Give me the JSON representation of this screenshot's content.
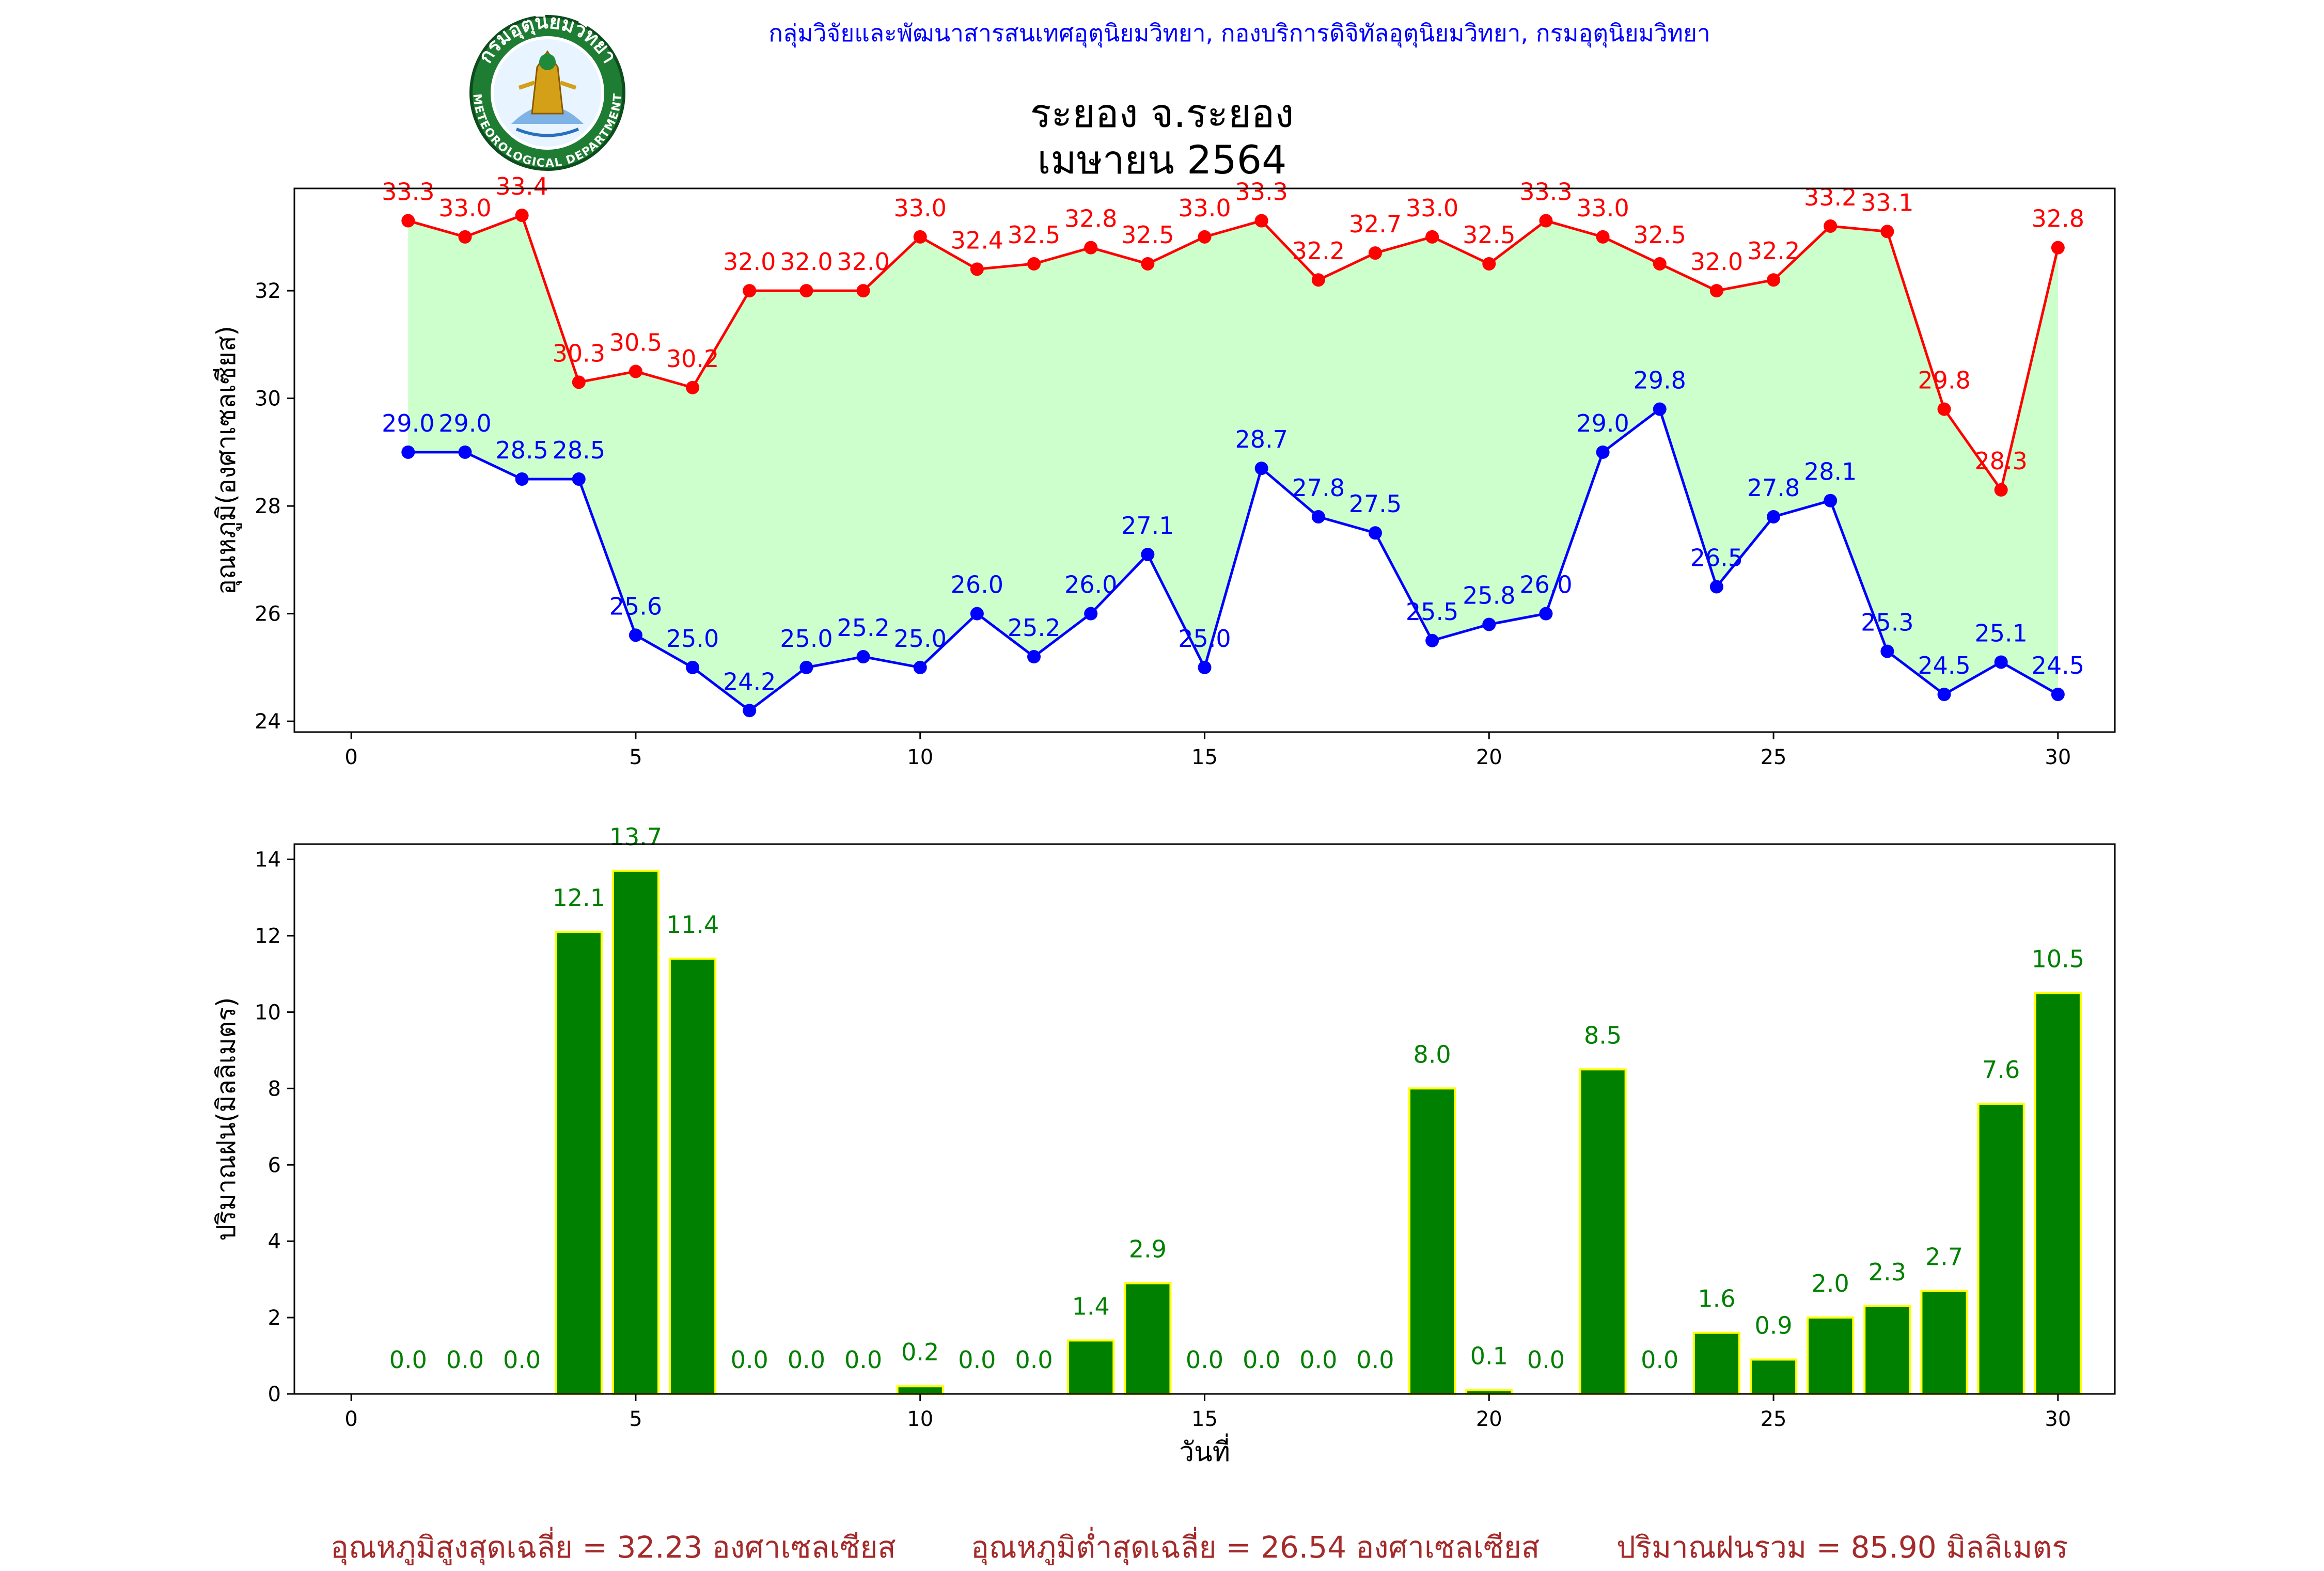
{
  "header": {
    "org": "กลุ่มวิจัยและพัฒนาสารสนเทศอุตุนิยมวิทยา, กองบริการดิจิทัลอุตุนิยมวิทยา, กรมอุตุนิยมวิทยา",
    "title_line1": "ระยอง จ.ระยอง",
    "title_line2": "เมษายน 2564"
  },
  "logo": {
    "text_top": "กรมอุตุนิยมวิทยา",
    "text_bottom": "METEOROLOGICAL DEPARTMENT",
    "colors": {
      "ring": "#1e7d32",
      "inner": "#ffffff",
      "figure": "#d4a017"
    }
  },
  "colors": {
    "max": "#ff0000",
    "min": "#0000ff",
    "fill": "#ccffcc",
    "bar": "#008000",
    "bar_edge": "#ffff00",
    "bar_label": "#008000",
    "footer": "#a52a2a"
  },
  "footer": {
    "max_avg": "อุณหภูมิสูงสุดเฉลี่ย = 32.23 องศาเซลเซียส",
    "min_avg": "อุณหภูมิต่ำสุดเฉลี่ย = 26.54 องศาเซลเซียส",
    "rain_total": "ปริมาณฝนรวม = 85.90 มิลลิเมตร"
  },
  "chart_data": [
    {
      "type": "line",
      "ylabel": "อุณหภูมิ(องศาเซลเซียส)",
      "xlabel": "",
      "xlim": [
        -1,
        31
      ],
      "ylim": [
        23.8,
        33.9
      ],
      "xticks": [
        0,
        5,
        10,
        15,
        20,
        25,
        30
      ],
      "yticks": [
        24,
        26,
        28,
        30,
        32
      ],
      "fill_between": true,
      "x": [
        1,
        2,
        3,
        4,
        5,
        6,
        7,
        8,
        9,
        10,
        11,
        12,
        13,
        14,
        15,
        16,
        17,
        18,
        19,
        20,
        21,
        22,
        23,
        24,
        25,
        26,
        27,
        28,
        29,
        30
      ],
      "series": [
        {
          "key": "max",
          "values": [
            33.3,
            33.0,
            33.4,
            30.3,
            30.5,
            30.2,
            32.0,
            32.0,
            32.0,
            33.0,
            32.4,
            32.5,
            32.8,
            32.5,
            33.0,
            33.3,
            32.2,
            32.7,
            33.0,
            32.5,
            33.3,
            33.0,
            32.5,
            32.0,
            32.2,
            33.2,
            33.1,
            29.8,
            28.3,
            32.8
          ],
          "labels": [
            "33.3",
            "33.0",
            "33.4",
            "30.3",
            "30.5",
            "30.2",
            "32.0",
            "32.0",
            "32.0",
            "33.0",
            "32.4",
            "32.5",
            "32.8",
            "32.5",
            "33.0",
            "33.3",
            "32.2",
            "32.7",
            "33.0",
            "32.5",
            "33.3",
            "33.0",
            "32.5",
            "32.0",
            "32.2",
            "33.2",
            "33.1",
            "29.8",
            "28.3",
            "32.8"
          ]
        },
        {
          "key": "min",
          "values": [
            29.0,
            29.0,
            28.5,
            28.5,
            25.6,
            25.0,
            24.2,
            25.0,
            25.2,
            25.0,
            26.0,
            25.2,
            26.0,
            27.1,
            25.0,
            28.7,
            27.8,
            27.5,
            25.5,
            25.8,
            26.0,
            29.0,
            29.8,
            26.5,
            27.8,
            28.1,
            25.3,
            24.5,
            25.1,
            24.5
          ],
          "labels": [
            "29.0",
            "29.0",
            "28.5",
            "28.5",
            "25.6",
            "25.0",
            "24.2",
            "25.0",
            "25.2",
            "25.0",
            "26.0",
            "25.2",
            "26.0",
            "27.1",
            "25.0",
            "28.7",
            "27.8",
            "27.5",
            "25.5",
            "25.8",
            "26.0",
            "29.0",
            "29.8",
            "26.5",
            "27.8",
            "28.1",
            "25.3",
            "24.5",
            "25.1",
            "24.5"
          ]
        }
      ]
    },
    {
      "type": "bar",
      "ylabel": "ปริมาณฝน(มิลลิเมตร)",
      "xlabel": "วันที่",
      "xlim": [
        -1,
        31
      ],
      "ylim": [
        0,
        14.4
      ],
      "xticks": [
        0,
        5,
        10,
        15,
        20,
        25,
        30
      ],
      "yticks": [
        0,
        2,
        4,
        6,
        8,
        10,
        12,
        14
      ],
      "x": [
        1,
        2,
        3,
        4,
        5,
        6,
        7,
        8,
        9,
        10,
        11,
        12,
        13,
        14,
        15,
        16,
        17,
        18,
        19,
        20,
        21,
        22,
        23,
        24,
        25,
        26,
        27,
        28,
        29,
        30
      ],
      "values": [
        0.0,
        0.0,
        0.0,
        12.1,
        13.7,
        11.4,
        0.0,
        0.0,
        0.0,
        0.2,
        0.0,
        0.0,
        1.4,
        2.9,
        0.0,
        0.0,
        0.0,
        0.0,
        8.0,
        0.1,
        0.0,
        8.5,
        0.0,
        1.6,
        0.9,
        2.0,
        2.3,
        2.7,
        7.6,
        10.5
      ],
      "labels": [
        "0.0",
        "0.0",
        "0.0",
        "12.1",
        "13.7",
        "11.4",
        "0.0",
        "0.0",
        "0.0",
        "0.2",
        "0.0",
        "0.0",
        "1.4",
        "2.9",
        "0.0",
        "0.0",
        "0.0",
        "0.0",
        "8.0",
        "0.1",
        "0.0",
        "8.5",
        "0.0",
        "1.6",
        "0.9",
        "2.0",
        "2.3",
        "2.7",
        "7.6",
        "10.5"
      ]
    }
  ]
}
